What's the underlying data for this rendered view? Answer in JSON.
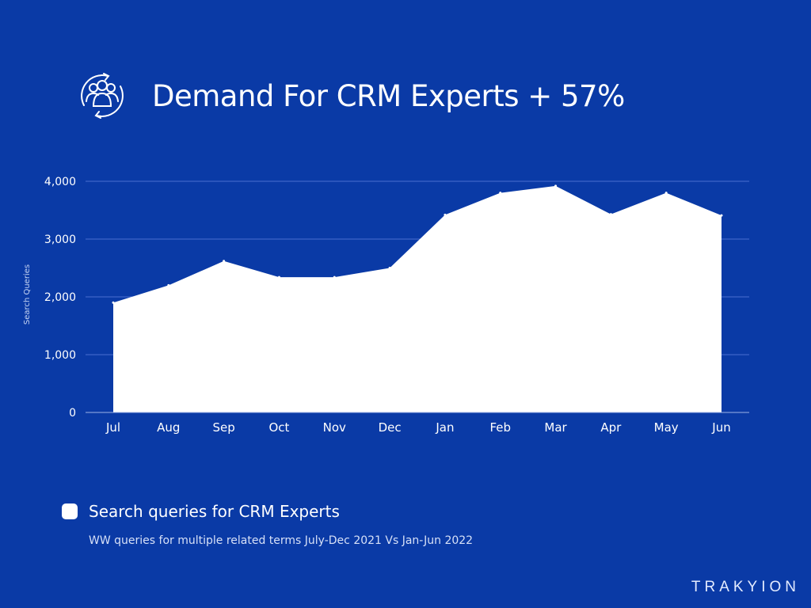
{
  "header": {
    "title": "Demand For CRM Experts + 57%",
    "icon": "people-exchange-icon"
  },
  "legend": {
    "label": "Search queries for CRM  Experts",
    "description": "WW queries for multiple related terms July-Dec 2021 Vs Jan-Jun 2022"
  },
  "brand": "TRAKYION",
  "colors": {
    "background": "#0a3aa6",
    "series": "#ffffff",
    "grid": "#4a6ed0"
  },
  "chart_data": {
    "type": "area",
    "categories": [
      "Jul",
      "Aug",
      "Sep",
      "Oct",
      "Nov",
      "Dec",
      "Jan",
      "Feb",
      "Mar",
      "Apr",
      "May",
      "Jun"
    ],
    "series": [
      {
        "name": "Search queries for CRM  Experts",
        "values": [
          1900,
          2200,
          2620,
          2340,
          2340,
          2500,
          3420,
          3800,
          3920,
          3430,
          3800,
          3410
        ]
      }
    ],
    "ylabel": "Search Queries",
    "xlabel": "",
    "ylim": [
      0,
      4000
    ],
    "yticks": [
      "0",
      "1,000",
      "2,000",
      "3,000",
      "4,000"
    ],
    "grid": true,
    "legend_position": "bottom-left"
  }
}
